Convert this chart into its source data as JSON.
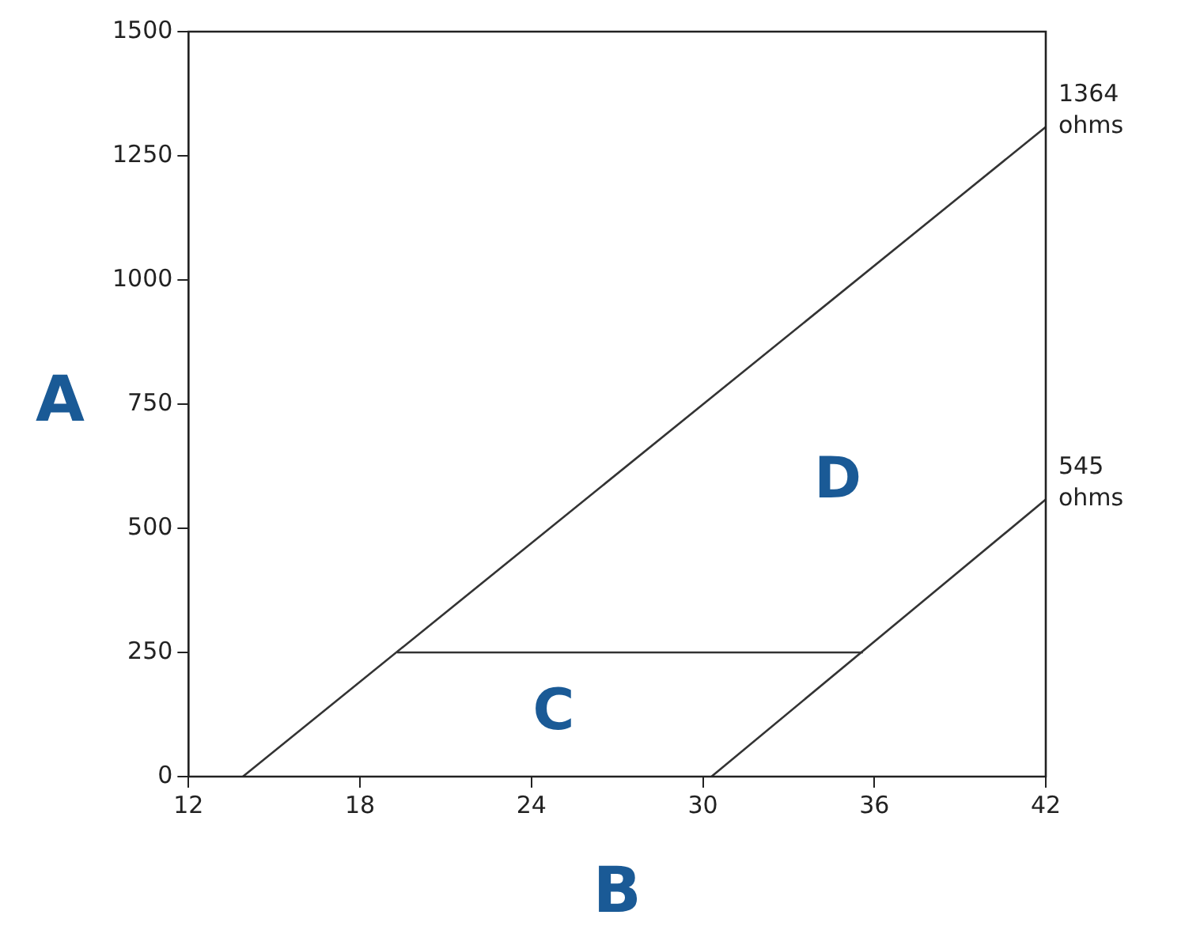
{
  "chart_data": {
    "type": "line",
    "xlabel": "B",
    "ylabel": "A",
    "xlim": [
      12,
      42
    ],
    "ylim": [
      0,
      1500
    ],
    "xticks": [
      12,
      18,
      24,
      30,
      36,
      42
    ],
    "yticks": [
      0,
      250,
      500,
      750,
      1000,
      1250,
      1500
    ],
    "grid": false,
    "legend": false,
    "marker": "none",
    "line_style": "solid",
    "series": [
      {
        "color": "#333333",
        "x": [
          13.9,
          42
        ],
        "values": [
          0,
          1308
        ]
      },
      {
        "color": "#333333",
        "x": [
          30.3,
          42
        ],
        "values": [
          0,
          558
        ]
      },
      {
        "color": "#333333",
        "x": [
          19.3,
          35.6
        ],
        "values": [
          250,
          250
        ]
      }
    ],
    "annotations": [
      {
        "text": "1364 ohms",
        "x": 42,
        "y": 1308
      },
      {
        "text": "545 ohms",
        "x": 42,
        "y": 558
      },
      "C",
      "D"
    ]
  }
}
